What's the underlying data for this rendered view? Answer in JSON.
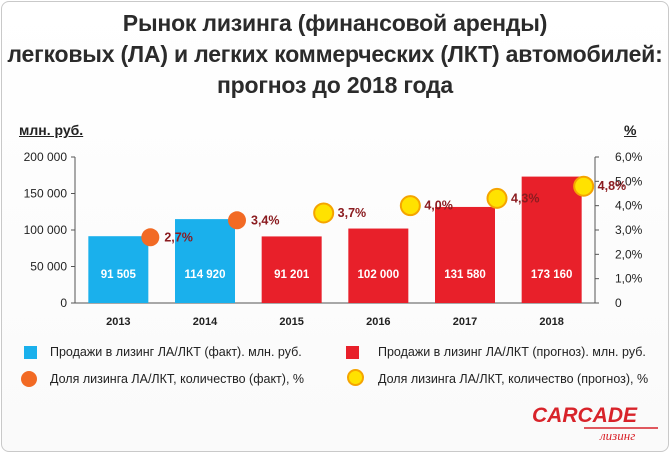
{
  "title_lines": [
    "Рынок лизинга (финансовой аренды)",
    "легковых (ЛА) и легких коммерческих (ЛКТ) автомобилей:",
    "прогноз до 2018 года"
  ],
  "legend": {
    "fact_bars": "Продажи в лизинг ЛА/ЛКТ (факт). млн. руб.",
    "forecast_bars": "Продажи в лизинг ЛА/ЛКТ (прогноз). млн. руб.",
    "fact_share": "Доля лизинга ЛА/ЛКТ, количество (факт), %",
    "forecast_share": "Доля лизинга ЛА/ЛКТ, количество (прогноз), %"
  },
  "logo": {
    "brand": "CARCADE",
    "sub": "лизинг"
  },
  "colors": {
    "fact_bar": "#1ab0ec",
    "forecast_bar": "#e8202a",
    "fact_dot": "#f26a24",
    "forecast_dot": "#ffe200",
    "forecast_dot_ring": "#f5a400",
    "share_label": "#8b1c20"
  },
  "chart_data": {
    "type": "bar",
    "ylabel": "млн. руб.",
    "y2label": "%",
    "categories": [
      "2013",
      "2014",
      "2015",
      "2016",
      "2017",
      "2018"
    ],
    "ylim": [
      0,
      200000
    ],
    "y_ticks": [
      "0",
      "50 000",
      "100 000",
      "150 000",
      "200 000"
    ],
    "y2lim": [
      0,
      6
    ],
    "y2_ticks": [
      "0",
      "1,0%",
      "2,0%",
      "3,0%",
      "4,0%",
      "5,0%",
      "6,0%"
    ],
    "series": [
      {
        "type": "bar",
        "values": [
          91505,
          114920,
          91201,
          102000,
          131580,
          173160
        ],
        "labels": [
          "91 505",
          "114 920",
          "91 201",
          "102 000",
          "131 580",
          "173 160"
        ],
        "kind": [
          "fact",
          "fact",
          "forecast",
          "forecast",
          "forecast",
          "forecast"
        ]
      },
      {
        "type": "scatter",
        "axis": "right",
        "values": [
          2.7,
          3.4,
          3.7,
          4.0,
          4.3,
          4.8
        ],
        "labels": [
          "2,7%",
          "3,4%",
          "3,7%",
          "4,0%",
          "4,3%",
          "4,8%"
        ],
        "kind": [
          "fact",
          "fact",
          "forecast",
          "forecast",
          "forecast",
          "forecast"
        ]
      }
    ],
    "grid": false
  }
}
